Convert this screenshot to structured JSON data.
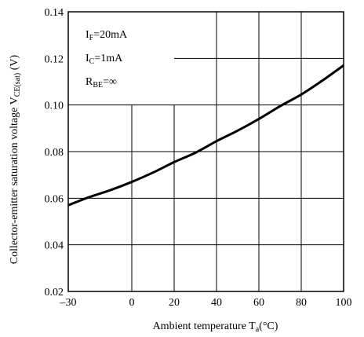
{
  "chart_data": {
    "type": "line",
    "title": "",
    "xlabel": {
      "main": "Ambient temperature T",
      "sub": "a",
      "unit": "(°C)"
    },
    "ylabel": {
      "main": "Collector-emitter saturation voltage V",
      "sub": "CE(sat)",
      "unit": " (V)"
    },
    "xlim": [
      -30,
      100
    ],
    "ylim": [
      0.02,
      0.14
    ],
    "xticks": [
      -30,
      0,
      20,
      40,
      60,
      80,
      100
    ],
    "xtick_labels": [
      "–30",
      "0",
      "20",
      "40",
      "60",
      "80",
      "100"
    ],
    "yticks": [
      0.02,
      0.04,
      0.06,
      0.08,
      0.1,
      0.12,
      0.14
    ],
    "ytick_labels": [
      "0.02",
      "0.04",
      "0.06",
      "0.08",
      "0.10",
      "0.12",
      "0.14"
    ],
    "grid": true,
    "annotations": [
      {
        "main": "I",
        "sub": "F",
        "rest": "=20mA"
      },
      {
        "main": "I",
        "sub": "C",
        "rest": "=1mA"
      },
      {
        "main": "R",
        "sub": "BE",
        "rest": "=∞"
      }
    ],
    "series": [
      {
        "x": [
          -30,
          -20,
          -10,
          0,
          10,
          20,
          30,
          40,
          50,
          60,
          70,
          80,
          90,
          100
        ],
        "y": [
          0.057,
          0.0605,
          0.0635,
          0.067,
          0.071,
          0.0755,
          0.0795,
          0.0845,
          0.089,
          0.094,
          0.0995,
          0.1045,
          0.1105,
          0.117
        ],
        "color": "#000000"
      }
    ]
  }
}
